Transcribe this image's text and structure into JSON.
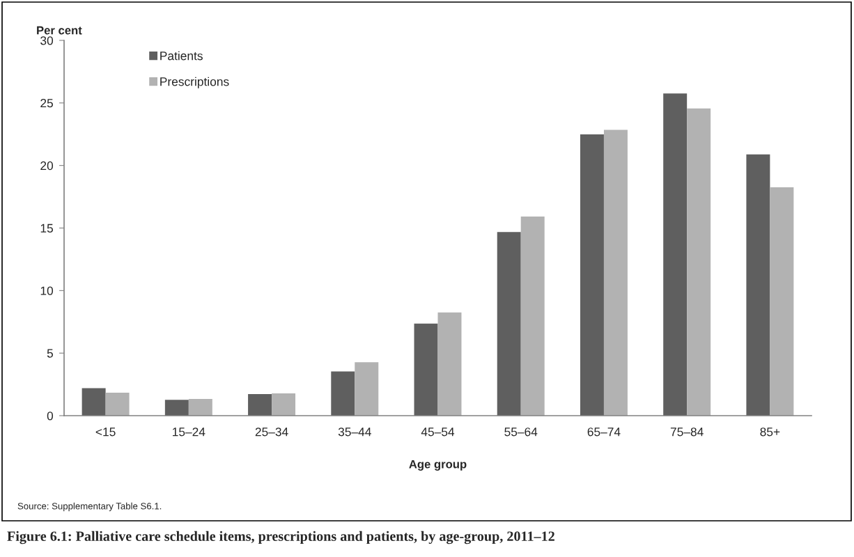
{
  "chart_data": {
    "type": "bar",
    "title": "Figure 6.1: Palliative care schedule items, prescriptions and patients, by age-group, 2011–12",
    "ylabel": "Per cent",
    "xlabel": "Age group",
    "categories": [
      "<15",
      "15–24",
      "25–34",
      "35–44",
      "45–54",
      "55–64",
      "65–74",
      "75–84",
      "85+"
    ],
    "series": [
      {
        "name": "Patients",
        "color": "#5f5f5f",
        "values": [
          2.2,
          1.26,
          1.73,
          3.53,
          7.36,
          14.68,
          22.48,
          25.75,
          20.88
        ]
      },
      {
        "name": "Prescriptions",
        "color": "#b2b2b2",
        "values": [
          1.84,
          1.34,
          1.78,
          4.27,
          8.25,
          15.92,
          22.85,
          24.56,
          18.26
        ]
      }
    ],
    "ylim": [
      0,
      30
    ],
    "yticks": [
      0,
      5,
      10,
      15,
      20,
      25,
      30
    ],
    "grid": false,
    "legend": "top left",
    "annotations": [
      "Source: Supplementary Table S6.1."
    ]
  }
}
